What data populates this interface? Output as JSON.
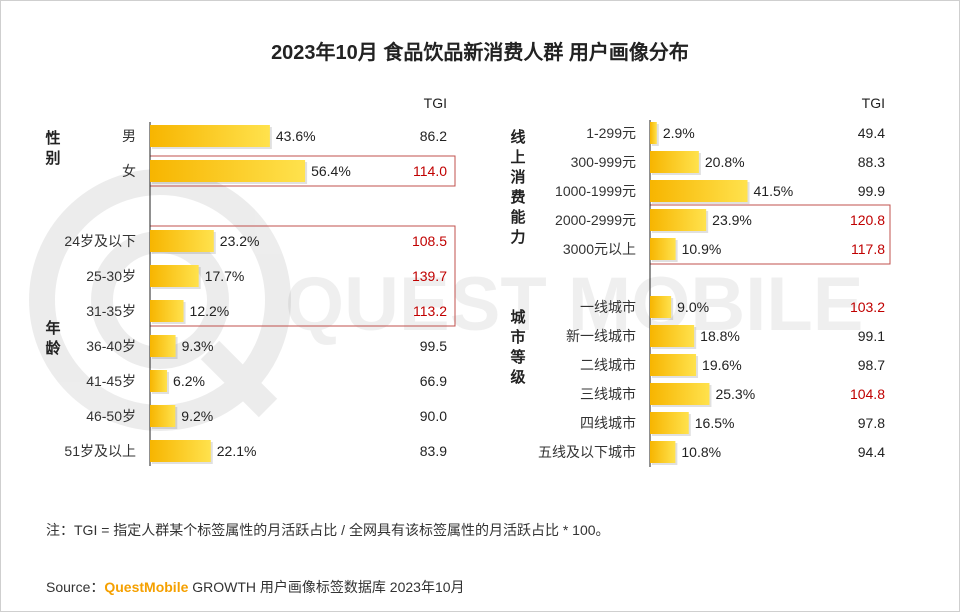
{
  "title": "2023年10月 食品饮品新消费人群 用户画像分布",
  "tgi_header": "TGI",
  "watermark": "QUEST MOBILE",
  "colors": {
    "bar_start": "#f7b500",
    "bar_end": "#ffe24d",
    "highlight": "#c00000",
    "box": "#c0504d",
    "axis": "#222222"
  },
  "chart_data": [
    {
      "type": "bar",
      "orientation": "horizontal",
      "groups": [
        {
          "name": "性别",
          "categories": [
            "男",
            "女"
          ]
        },
        {
          "name": "年龄",
          "categories": [
            "24岁及以下",
            "25-30岁",
            "31-35岁",
            "36-40岁",
            "41-45岁",
            "46-50岁",
            "51岁及以上"
          ]
        }
      ],
      "categories": [
        "男",
        "女",
        "24岁及以下",
        "25-30岁",
        "31-35岁",
        "36-40岁",
        "41-45岁",
        "46-50岁",
        "51岁及以上"
      ],
      "values": [
        43.6,
        56.4,
        23.2,
        17.7,
        12.2,
        9.3,
        6.2,
        9.2,
        22.1
      ],
      "value_labels": [
        "43.6%",
        "56.4%",
        "23.2%",
        "17.7%",
        "12.2%",
        "9.3%",
        "6.2%",
        "9.2%",
        "22.1%"
      ],
      "tgi": [
        "86.2",
        "114.0",
        "108.5",
        "139.7",
        "113.2",
        "99.5",
        "66.9",
        "90.0",
        "83.9"
      ],
      "tgi_highlight": [
        false,
        true,
        true,
        true,
        true,
        false,
        false,
        false,
        false
      ],
      "unit": "%"
    },
    {
      "type": "bar",
      "orientation": "horizontal",
      "groups": [
        {
          "name": "线上消费能力",
          "categories": [
            "1-299元",
            "300-999元",
            "1000-1999元",
            "2000-2999元",
            "3000元以上"
          ]
        },
        {
          "name": "城市等级",
          "categories": [
            "一线城市",
            "新一线城市",
            "二线城市",
            "三线城市",
            "四线城市",
            "五线及以下城市"
          ]
        }
      ],
      "categories": [
        "1-299元",
        "300-999元",
        "1000-1999元",
        "2000-2999元",
        "3000元以上",
        "一线城市",
        "新一线城市",
        "二线城市",
        "三线城市",
        "四线城市",
        "五线及以下城市"
      ],
      "values": [
        2.9,
        20.8,
        41.5,
        23.9,
        10.9,
        9.0,
        18.8,
        19.6,
        25.3,
        16.5,
        10.8
      ],
      "value_labels": [
        "2.9%",
        "20.8%",
        "41.5%",
        "23.9%",
        "10.9%",
        "9.0%",
        "18.8%",
        "19.6%",
        "25.3%",
        "16.5%",
        "10.8%"
      ],
      "tgi": [
        "49.4",
        "88.3",
        "99.9",
        "120.8",
        "117.8",
        "103.2",
        "99.1",
        "98.7",
        "104.8",
        "97.8",
        "94.4"
      ],
      "tgi_highlight": [
        false,
        false,
        false,
        true,
        true,
        true,
        false,
        false,
        true,
        false,
        false
      ],
      "unit": "%"
    }
  ],
  "note": "注：TGI = 指定人群某个标签属性的月活跃占比 / 全网具有该标签属性的月活跃占比 * 100。",
  "source": {
    "prefix": "Source：",
    "brand": "QuestMobile",
    "rest": " GROWTH 用户画像标签数据库 2023年10月"
  }
}
